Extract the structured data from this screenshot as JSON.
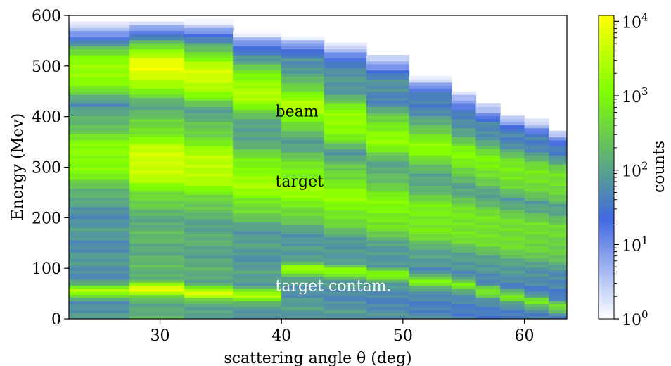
{
  "chart_data": {
    "type": "heatmap",
    "title": "",
    "xlabel": "scattering angle θ (deg)",
    "ylabel": "Energy (Mev)",
    "xlim": [
      22.5,
      63.5
    ],
    "ylim": [
      0,
      600
    ],
    "xticks": [
      30,
      40,
      50,
      60
    ],
    "yticks": [
      0,
      100,
      200,
      300,
      400,
      500,
      600
    ],
    "colorbar": {
      "label": "counts",
      "scale": "log",
      "range": [
        1,
        12000
      ],
      "ticks": [
        {
          "base": "10",
          "exp": "0",
          "value": 1
        },
        {
          "base": "10",
          "exp": "1",
          "value": 10
        },
        {
          "base": "10",
          "exp": "2",
          "value": 100
        },
        {
          "base": "10",
          "exp": "3",
          "value": 1000
        },
        {
          "base": "10",
          "exp": "4",
          "value": 10000
        }
      ],
      "colormap": [
        "#ffffff",
        "#4169e1",
        "#7fff00",
        "#ffff00"
      ],
      "colormap_stops": [
        0,
        0.33,
        0.75,
        1
      ]
    },
    "x_bins": [
      22.5,
      27.5,
      32,
      36,
      40,
      43.5,
      47,
      50.5,
      54,
      56,
      58,
      60,
      62,
      63.5
    ],
    "energy_profile": {
      "max_energy": [
        600,
        600,
        600,
        580,
        575,
        560,
        540,
        500,
        470,
        450,
        430,
        420,
        400
      ],
      "beam_center": [
        490,
        495,
        480,
        450,
        420,
        390,
        360,
        340,
        320,
        305,
        290,
        280,
        270
      ],
      "target_center": [
        320,
        310,
        300,
        270,
        260,
        240,
        220,
        200,
        190,
        180,
        170,
        165,
        160
      ],
      "contam_center": [
        55,
        60,
        52,
        48,
        100,
        95,
        88,
        75,
        68,
        55,
        45,
        35,
        25
      ],
      "bin_peak_counts": [
        2200,
        9000,
        6000,
        3000,
        2500,
        2000,
        1500,
        1200,
        1000,
        900,
        800,
        700,
        600
      ]
    },
    "annotations": [
      {
        "text": "beam",
        "x": 39.5,
        "y": 400,
        "color": "#000000"
      },
      {
        "text": "target",
        "x": 39.5,
        "y": 262,
        "color": "#000000"
      },
      {
        "text": "target contam.",
        "x": 39.5,
        "y": 55,
        "color": "#ffffff"
      }
    ]
  }
}
